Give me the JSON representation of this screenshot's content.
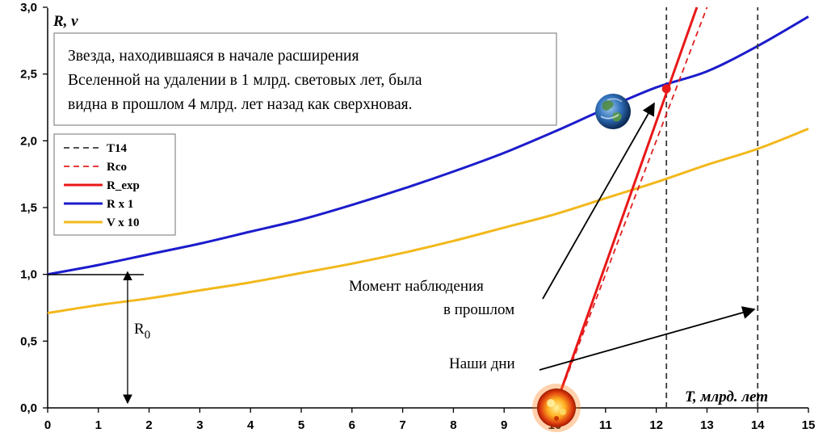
{
  "chart_data": {
    "type": "line",
    "xlabel": "T, млрд. лет",
    "ylabel": "R, v",
    "xlim": [
      0,
      15
    ],
    "ylim": [
      0,
      3
    ],
    "xticks": [
      "0",
      "1",
      "2",
      "3",
      "4",
      "5",
      "6",
      "7",
      "8",
      "9",
      "10",
      "11",
      "12",
      "13",
      "14",
      "15"
    ],
    "yticks": [
      "0,0",
      "0,5",
      "1,0",
      "1,5",
      "2,0",
      "2,5",
      "3,0"
    ],
    "grid": false,
    "legend_position": "left",
    "series": [
      {
        "name": "T14",
        "style": "dashed",
        "color": "#3a3a3a",
        "x": [
          14,
          14
        ],
        "y": [
          0,
          3
        ]
      },
      {
        "name": "Rco",
        "style": "dashed",
        "color": "#e02020",
        "x": [
          10.0,
          13.0
        ],
        "y": [
          0.0,
          3.0
        ]
      },
      {
        "name": "R_exp",
        "style": "solid",
        "color": "#e81818",
        "x": [
          10.0,
          12.8
        ],
        "y": [
          0.0,
          3.0
        ]
      },
      {
        "name": "R x 1",
        "style": "solid",
        "color": "#1c1ccc",
        "x": [
          0,
          1,
          2,
          3,
          4,
          5,
          6,
          7,
          8,
          9,
          10,
          11,
          12,
          13,
          14,
          15
        ],
        "y": [
          1.0,
          1.07,
          1.15,
          1.23,
          1.32,
          1.41,
          1.52,
          1.64,
          1.77,
          1.91,
          2.07,
          2.24,
          2.4,
          2.52,
          2.71,
          2.93
        ]
      },
      {
        "name": "V x 10",
        "style": "solid",
        "color": "#f2b81c",
        "x": [
          0,
          1,
          2,
          3,
          4,
          5,
          6,
          7,
          8,
          9,
          10,
          11,
          12,
          13,
          14,
          15
        ],
        "y": [
          0.71,
          0.77,
          0.82,
          0.88,
          0.94,
          1.01,
          1.08,
          1.16,
          1.25,
          1.35,
          1.45,
          1.57,
          1.69,
          1.82,
          1.94,
          2.09
        ]
      }
    ],
    "extra_lines": [
      {
        "style": "dashed",
        "color": "#3a3a3a",
        "x": [
          12.2,
          12.2
        ],
        "y": [
          0,
          3
        ]
      }
    ],
    "marker": {
      "x": 12.2,
      "y": 2.39,
      "color": "#e81818"
    }
  },
  "note_text": [
    "Звезда, находившаяся в начале расширения",
    "Вселенной на удалении в 1 млрд. световых лет, была",
    "видна в прошлом 4 млрд. лет назад как сверхновая."
  ],
  "annotations": {
    "r0": "R",
    "r0_sub": "0",
    "moment_line1": "Момент наблюдения",
    "moment_line2": "в прошлом",
    "nashi": "Наши дни"
  },
  "icons": {
    "earth": "earth-icon",
    "supernova": "supernova-icon"
  }
}
